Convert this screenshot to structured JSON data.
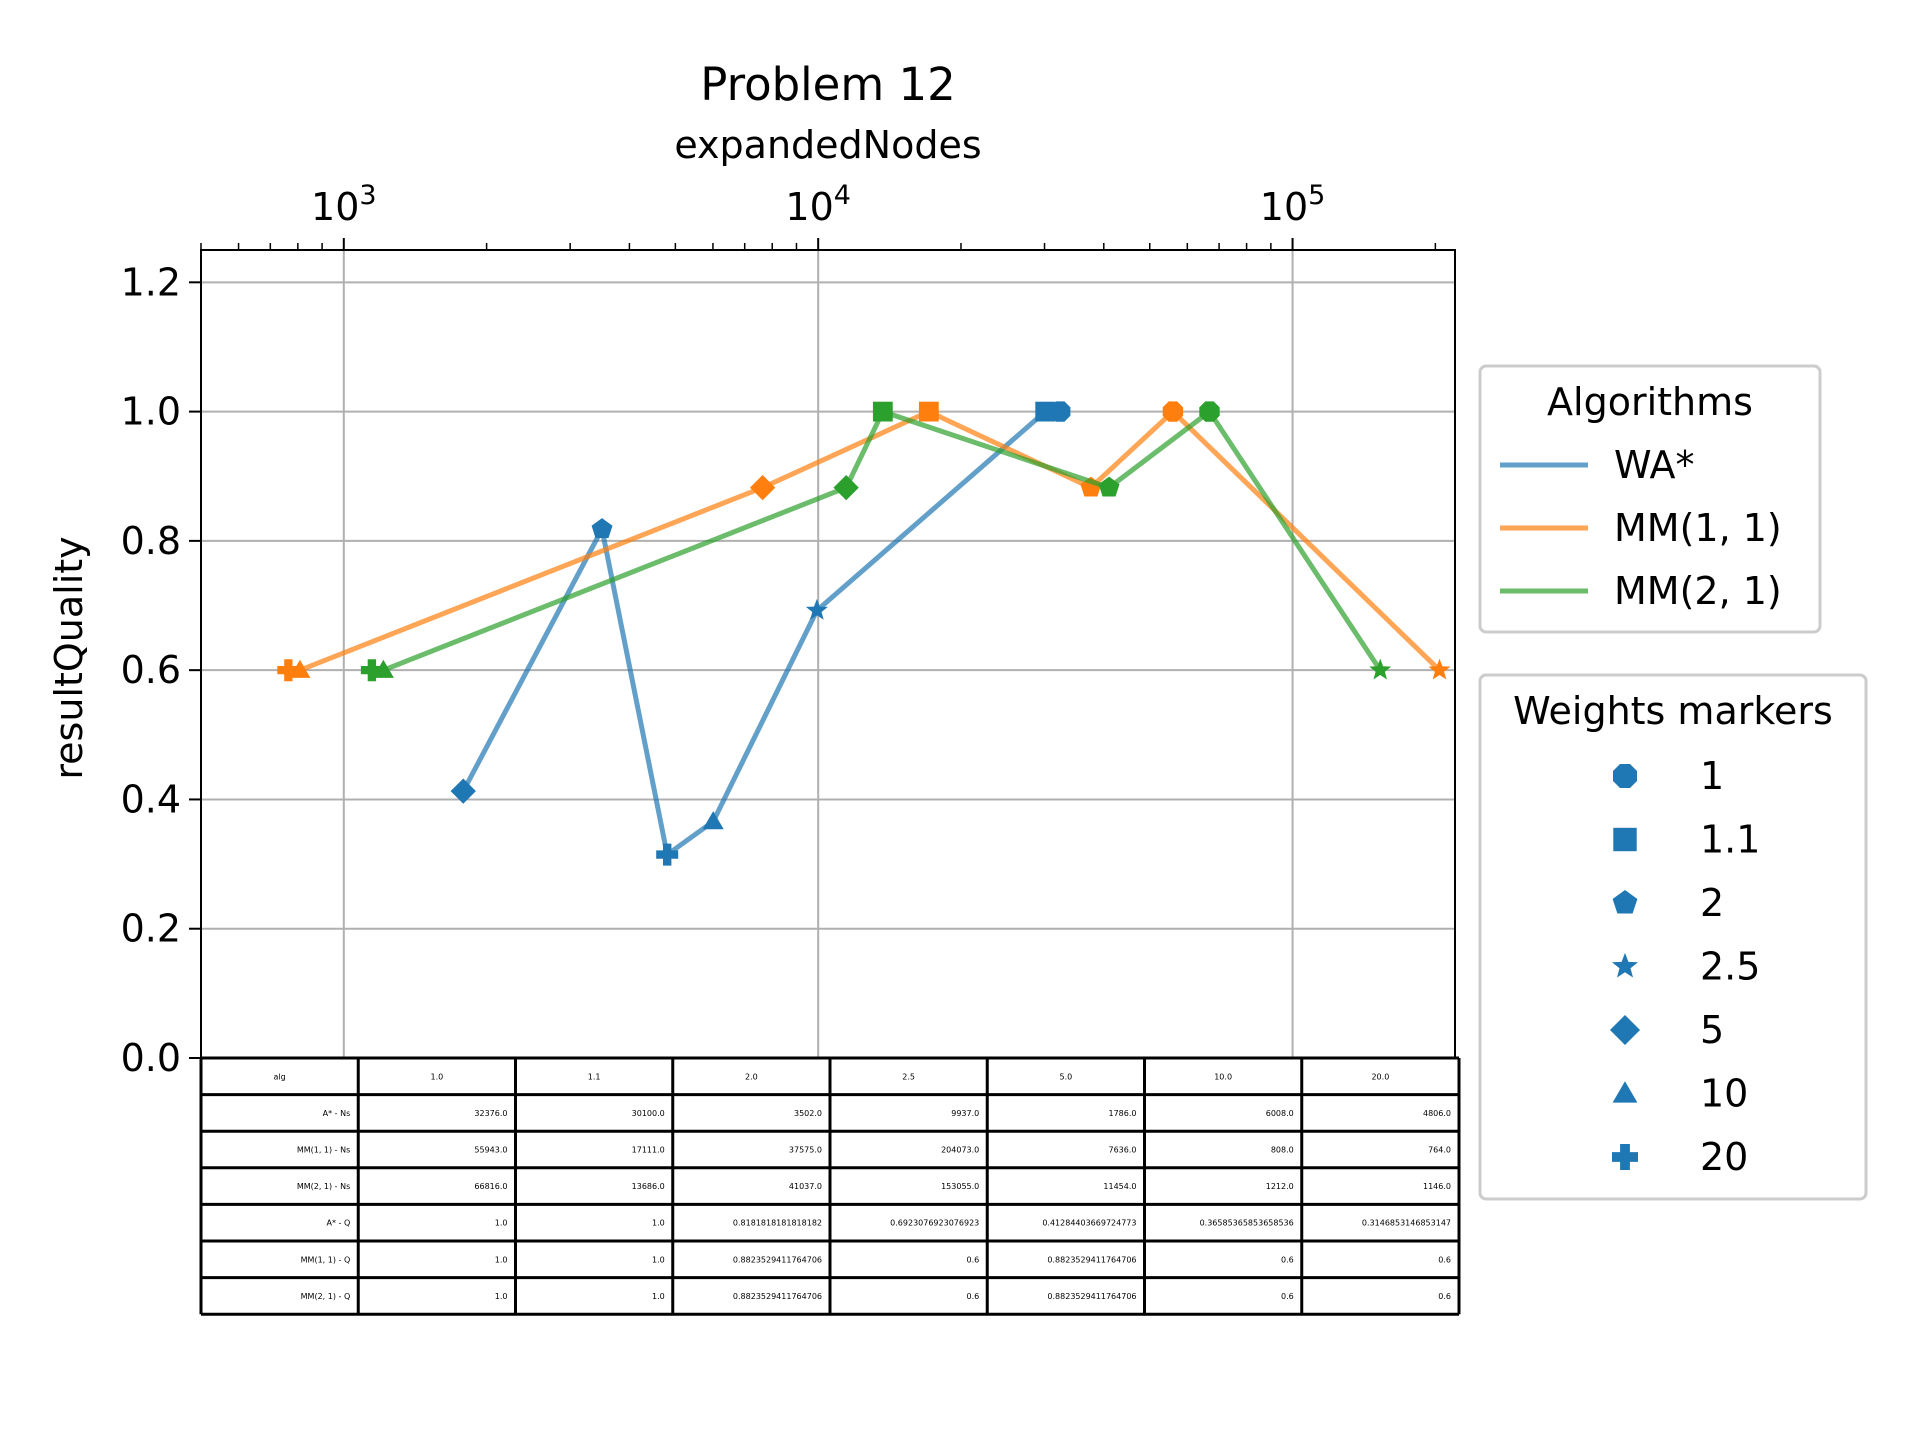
{
  "chart_data": {
    "type": "line",
    "title": "Problem 12",
    "xlabel": "expandedNodes",
    "ylabel": "resultQuality",
    "xscale": "log",
    "xlim": [
      500,
      220000
    ],
    "ylim": [
      0.0,
      1.25
    ],
    "x_ticks": [
      {
        "base": "10",
        "exp": "3",
        "value": 1000
      },
      {
        "base": "10",
        "exp": "4",
        "value": 10000
      },
      {
        "base": "10",
        "exp": "5",
        "value": 100000
      }
    ],
    "y_ticks": [
      "0.0",
      "0.2",
      "0.4",
      "0.6",
      "0.8",
      "1.0",
      "1.2"
    ],
    "grid": true,
    "x_axis_position": "top",
    "series": [
      {
        "name": "WA*",
        "color": "#1f77b4",
        "points": [
          {
            "x": 32376,
            "y": 1.0,
            "marker": "1"
          },
          {
            "x": 30100,
            "y": 1.0,
            "marker": "1.1"
          },
          {
            "x": 9937,
            "y": 0.6923076923076923,
            "marker": "2.5"
          },
          {
            "x": 6008,
            "y": 0.36585365853658536,
            "marker": "10"
          },
          {
            "x": 4806,
            "y": 0.3146853146853147,
            "marker": "20"
          },
          {
            "x": 3502,
            "y": 0.8181818181818182,
            "marker": "2"
          },
          {
            "x": 1786,
            "y": 0.41284403669724773,
            "marker": "5"
          }
        ]
      },
      {
        "name": "MM(1, 1)",
        "color": "#ff7f0e",
        "points": [
          {
            "x": 764,
            "y": 0.6,
            "marker": "20"
          },
          {
            "x": 808,
            "y": 0.6,
            "marker": "10"
          },
          {
            "x": 7636,
            "y": 0.8823529411764706,
            "marker": "5"
          },
          {
            "x": 17111,
            "y": 1.0,
            "marker": "1.1"
          },
          {
            "x": 37575,
            "y": 0.8823529411764706,
            "marker": "2"
          },
          {
            "x": 55943,
            "y": 1.0,
            "marker": "1"
          },
          {
            "x": 204073,
            "y": 0.6,
            "marker": "2.5"
          }
        ]
      },
      {
        "name": "MM(2, 1)",
        "color": "#2ca02c",
        "points": [
          {
            "x": 1146,
            "y": 0.6,
            "marker": "20"
          },
          {
            "x": 1212,
            "y": 0.6,
            "marker": "10"
          },
          {
            "x": 11454,
            "y": 0.8823529411764706,
            "marker": "5"
          },
          {
            "x": 13686,
            "y": 1.0,
            "marker": "1.1"
          },
          {
            "x": 41037,
            "y": 0.8823529411764706,
            "marker": "2"
          },
          {
            "x": 66816,
            "y": 1.0,
            "marker": "1"
          },
          {
            "x": 153055,
            "y": 0.6,
            "marker": "2.5"
          }
        ]
      }
    ],
    "legend_algorithms": {
      "title": "Algorithms",
      "placement": "right",
      "entries": [
        {
          "label": "WA*",
          "color": "#1f77b4"
        },
        {
          "label": "MM(1, 1)",
          "color": "#ff7f0e"
        },
        {
          "label": "MM(2, 1)",
          "color": "#2ca02c"
        }
      ]
    },
    "legend_markers": {
      "title": "Weights markers",
      "placement": "right",
      "color": "#1f77b4",
      "entries": [
        {
          "label": "1",
          "shape": "octagon"
        },
        {
          "label": "1.1",
          "shape": "square"
        },
        {
          "label": "2",
          "shape": "pentagon"
        },
        {
          "label": "2.5",
          "shape": "star"
        },
        {
          "label": "5",
          "shape": "diamond"
        },
        {
          "label": "10",
          "shape": "triangle"
        },
        {
          "label": "20",
          "shape": "plus"
        }
      ]
    },
    "table": {
      "header": [
        "alg",
        "1.0",
        "1.1",
        "2.0",
        "2.5",
        "5.0",
        "10.0",
        "20.0"
      ],
      "rows": [
        [
          "A* - Ns",
          "32376.0",
          "30100.0",
          "3502.0",
          "9937.0",
          "1786.0",
          "6008.0",
          "4806.0"
        ],
        [
          "MM(1, 1) - Ns",
          "55943.0",
          "17111.0",
          "37575.0",
          "204073.0",
          "7636.0",
          "808.0",
          "764.0"
        ],
        [
          "MM(2, 1) - Ns",
          "66816.0",
          "13686.0",
          "41037.0",
          "153055.0",
          "11454.0",
          "1212.0",
          "1146.0"
        ],
        [
          "A* - Q",
          "1.0",
          "1.0",
          "0.8181818181818182",
          "0.6923076923076923",
          "0.41284403669724773",
          "0.36585365853658536",
          "0.3146853146853147"
        ],
        [
          "MM(1, 1) - Q",
          "1.0",
          "1.0",
          "0.8823529411764706",
          "0.6",
          "0.8823529411764706",
          "0.6",
          "0.6"
        ],
        [
          "MM(2, 1) - Q",
          "1.0",
          "1.0",
          "0.8823529411764706",
          "0.6",
          "0.8823529411764706",
          "0.6",
          "0.6"
        ]
      ]
    }
  }
}
